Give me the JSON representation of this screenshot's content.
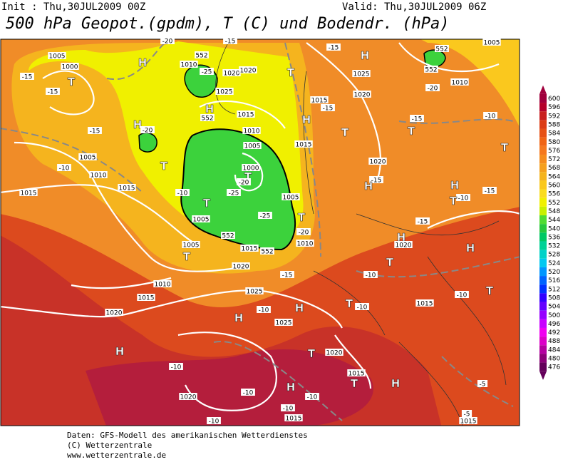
{
  "header": {
    "init": "Init : Thu,30JUL2009 00Z",
    "valid": "Valid: Thu,30JUL2009 06Z",
    "title": "500 hPa Geopot.(gpdm), T (C) und Bodendr. (hPa)"
  },
  "legend": {
    "levels": [
      600,
      596,
      592,
      588,
      584,
      580,
      576,
      572,
      568,
      564,
      560,
      556,
      552,
      548,
      544,
      540,
      536,
      532,
      528,
      524,
      520,
      516,
      512,
      508,
      504,
      500,
      496,
      492,
      488,
      484,
      480,
      476
    ],
    "colors": [
      "#a0003c",
      "#b4002a",
      "#c81e1e",
      "#dc3c14",
      "#e65014",
      "#f06414",
      "#f5781e",
      "#f58c1e",
      "#f5a01e",
      "#f5b41e",
      "#fac81e",
      "#fadc1e",
      "#f0f000",
      "#c8f000",
      "#50dc32",
      "#28c83c",
      "#00c864",
      "#00d296",
      "#00d2c8",
      "#00c8f0",
      "#0096ff",
      "#0064ff",
      "#0032ff",
      "#3200ff",
      "#6400ff",
      "#9600ff",
      "#c800ff",
      "#f000f0",
      "#dc00c8",
      "#b400a0",
      "#8c0078",
      "#64005a"
    ]
  },
  "map": {
    "labels": [
      "1005",
      "1000",
      "-15",
      "T",
      "-15",
      "H",
      "1010",
      "-25",
      "1020",
      "1020",
      "T",
      "1025",
      "552",
      "H",
      "552",
      "1015",
      "H",
      "-20",
      "1010",
      "-15",
      "1005",
      "-10",
      "1010",
      "T",
      "1005",
      "1000",
      "T",
      "-20",
      "-25",
      "T",
      "1005",
      "-25",
      "1005",
      "T",
      "-20",
      "1010",
      "552",
      "552",
      "1015",
      "1015",
      "-10",
      "1015",
      "1005",
      "T",
      "1020",
      "1010",
      "1015",
      "1025",
      "1020",
      "H",
      "-10",
      "H",
      "1025",
      "H",
      "T",
      "1020",
      "-10",
      "1015",
      "T",
      "-10",
      "H",
      "-10",
      "1020",
      "H",
      "-10",
      "-10",
      "1015",
      "H",
      "1015",
      "T",
      "-15",
      "1015",
      "1020",
      "1025",
      "H",
      "552",
      "552",
      "-20",
      "1005",
      "1010",
      "T",
      "-15",
      "-10",
      "T",
      "1020",
      "-15",
      "H",
      "H",
      "-10",
      "T",
      "-15",
      "-15",
      "H",
      "1020",
      "H",
      "T",
      "-10",
      "-15",
      "T",
      "-10",
      "T",
      "-10",
      "1015",
      "-5",
      "-5",
      "1015",
      "-15",
      "-20",
      "-15"
    ]
  },
  "footer": [
    "Daten: GFS-Modell des amerikanischen Wetterdienstes",
    "(C) Wetterzentrale",
    "www.wetterzentrale.de"
  ]
}
